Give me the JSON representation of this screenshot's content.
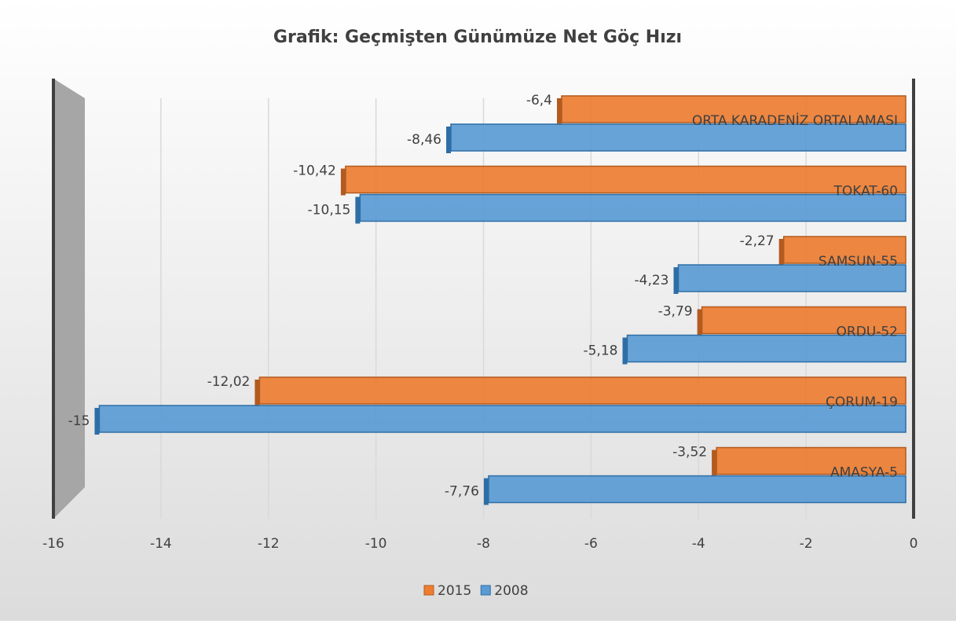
{
  "chart_data": {
    "type": "bar",
    "orientation": "horizontal",
    "title": "Grafik: Geçmişten Günümüze Net Göç Hızı",
    "categories": [
      "ORTA KARADENİZ ORTALAMASI",
      "TOKAT-60",
      "SAMSUN-55",
      "ORDU-52",
      "ÇORUM-19",
      "AMASYA-5"
    ],
    "series": [
      {
        "name": "2015",
        "color": "#ed7d31",
        "values": [
          -6.4,
          -10.42,
          -2.27,
          -3.79,
          -12.02,
          -3.52
        ],
        "value_labels": [
          "-6,4",
          "-10,42",
          "-2,27",
          "-3,79",
          "-12,02",
          "-3,52"
        ]
      },
      {
        "name": "2008",
        "color": "#5b9bd5",
        "values": [
          -8.46,
          -10.15,
          -4.23,
          -5.18,
          -15,
          -7.76
        ],
        "value_labels": [
          "-8,46",
          "-10,15",
          "-4,23",
          "-5,18",
          "-15",
          "-7,76"
        ]
      }
    ],
    "xlim": [
      -16,
      0
    ],
    "xticks": [
      -16,
      -14,
      -12,
      -10,
      -8,
      -6,
      -4,
      -2,
      0
    ],
    "grid": true,
    "legend": "bottom"
  }
}
